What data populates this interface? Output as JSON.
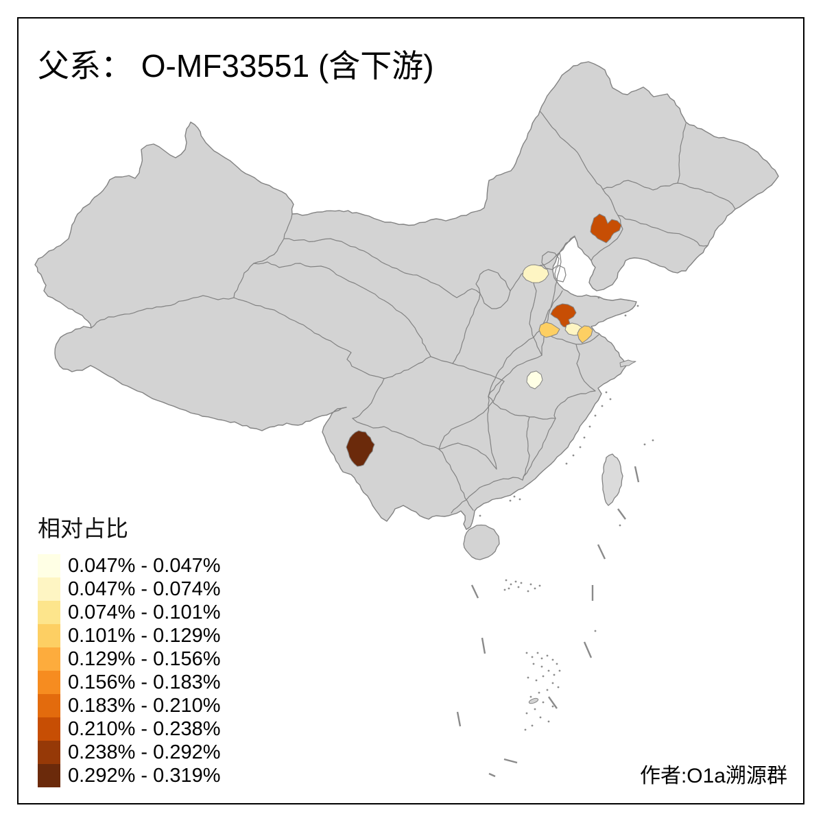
{
  "title": "父系： O-MF33551 (含下游)",
  "legend": {
    "title": "相对占比",
    "items": [
      {
        "label": "0.047% - 0.047%",
        "color": "#FFFFE5"
      },
      {
        "label": "0.047% - 0.074%",
        "color": "#FEF5C3"
      },
      {
        "label": "0.074% - 0.101%",
        "color": "#FDE58C"
      },
      {
        "label": "0.101% - 0.129%",
        "color": "#FDCF63"
      },
      {
        "label": "0.129% - 0.156%",
        "color": "#FDAC3D"
      },
      {
        "label": "0.156% - 0.183%",
        "color": "#F68C20"
      },
      {
        "label": "0.183% - 0.210%",
        "color": "#E36B0D"
      },
      {
        "label": "0.210% - 0.238%",
        "color": "#C74E04"
      },
      {
        "label": "0.238% - 0.292%",
        "color": "#963907"
      },
      {
        "label": "0.292% - 0.319%",
        "color": "#6B2A0B"
      }
    ]
  },
  "author": "作者:O1a溯源群",
  "map": {
    "land_fill": "#D3D3D3",
    "taiwan_fill": "#DBDBDB",
    "border_color": "#828282",
    "frame_color": "#000000",
    "regions": [
      {
        "id": "liaoning-west",
        "color": "#C74E04",
        "range": "0.210% - 0.238%"
      },
      {
        "id": "hebei-central",
        "color": "#FEF5C3",
        "range": "0.047% - 0.074%"
      },
      {
        "id": "shandong-north",
        "color": "#C74E04",
        "range": "0.210% - 0.238%"
      },
      {
        "id": "shandong-west",
        "color": "#FDCF63",
        "range": "0.101% - 0.129%"
      },
      {
        "id": "shandong-southwest",
        "color": "#FEF5C3",
        "range": "0.047% - 0.074%"
      },
      {
        "id": "shandong-central",
        "color": "#FDCF63",
        "range": "0.101% - 0.129%"
      },
      {
        "id": "hubei-east",
        "color": "#FFFFE5",
        "range": "0.047% - 0.047%"
      },
      {
        "id": "yunnan-west",
        "color": "#6B2A0B",
        "range": "0.292% - 0.319%"
      }
    ]
  }
}
